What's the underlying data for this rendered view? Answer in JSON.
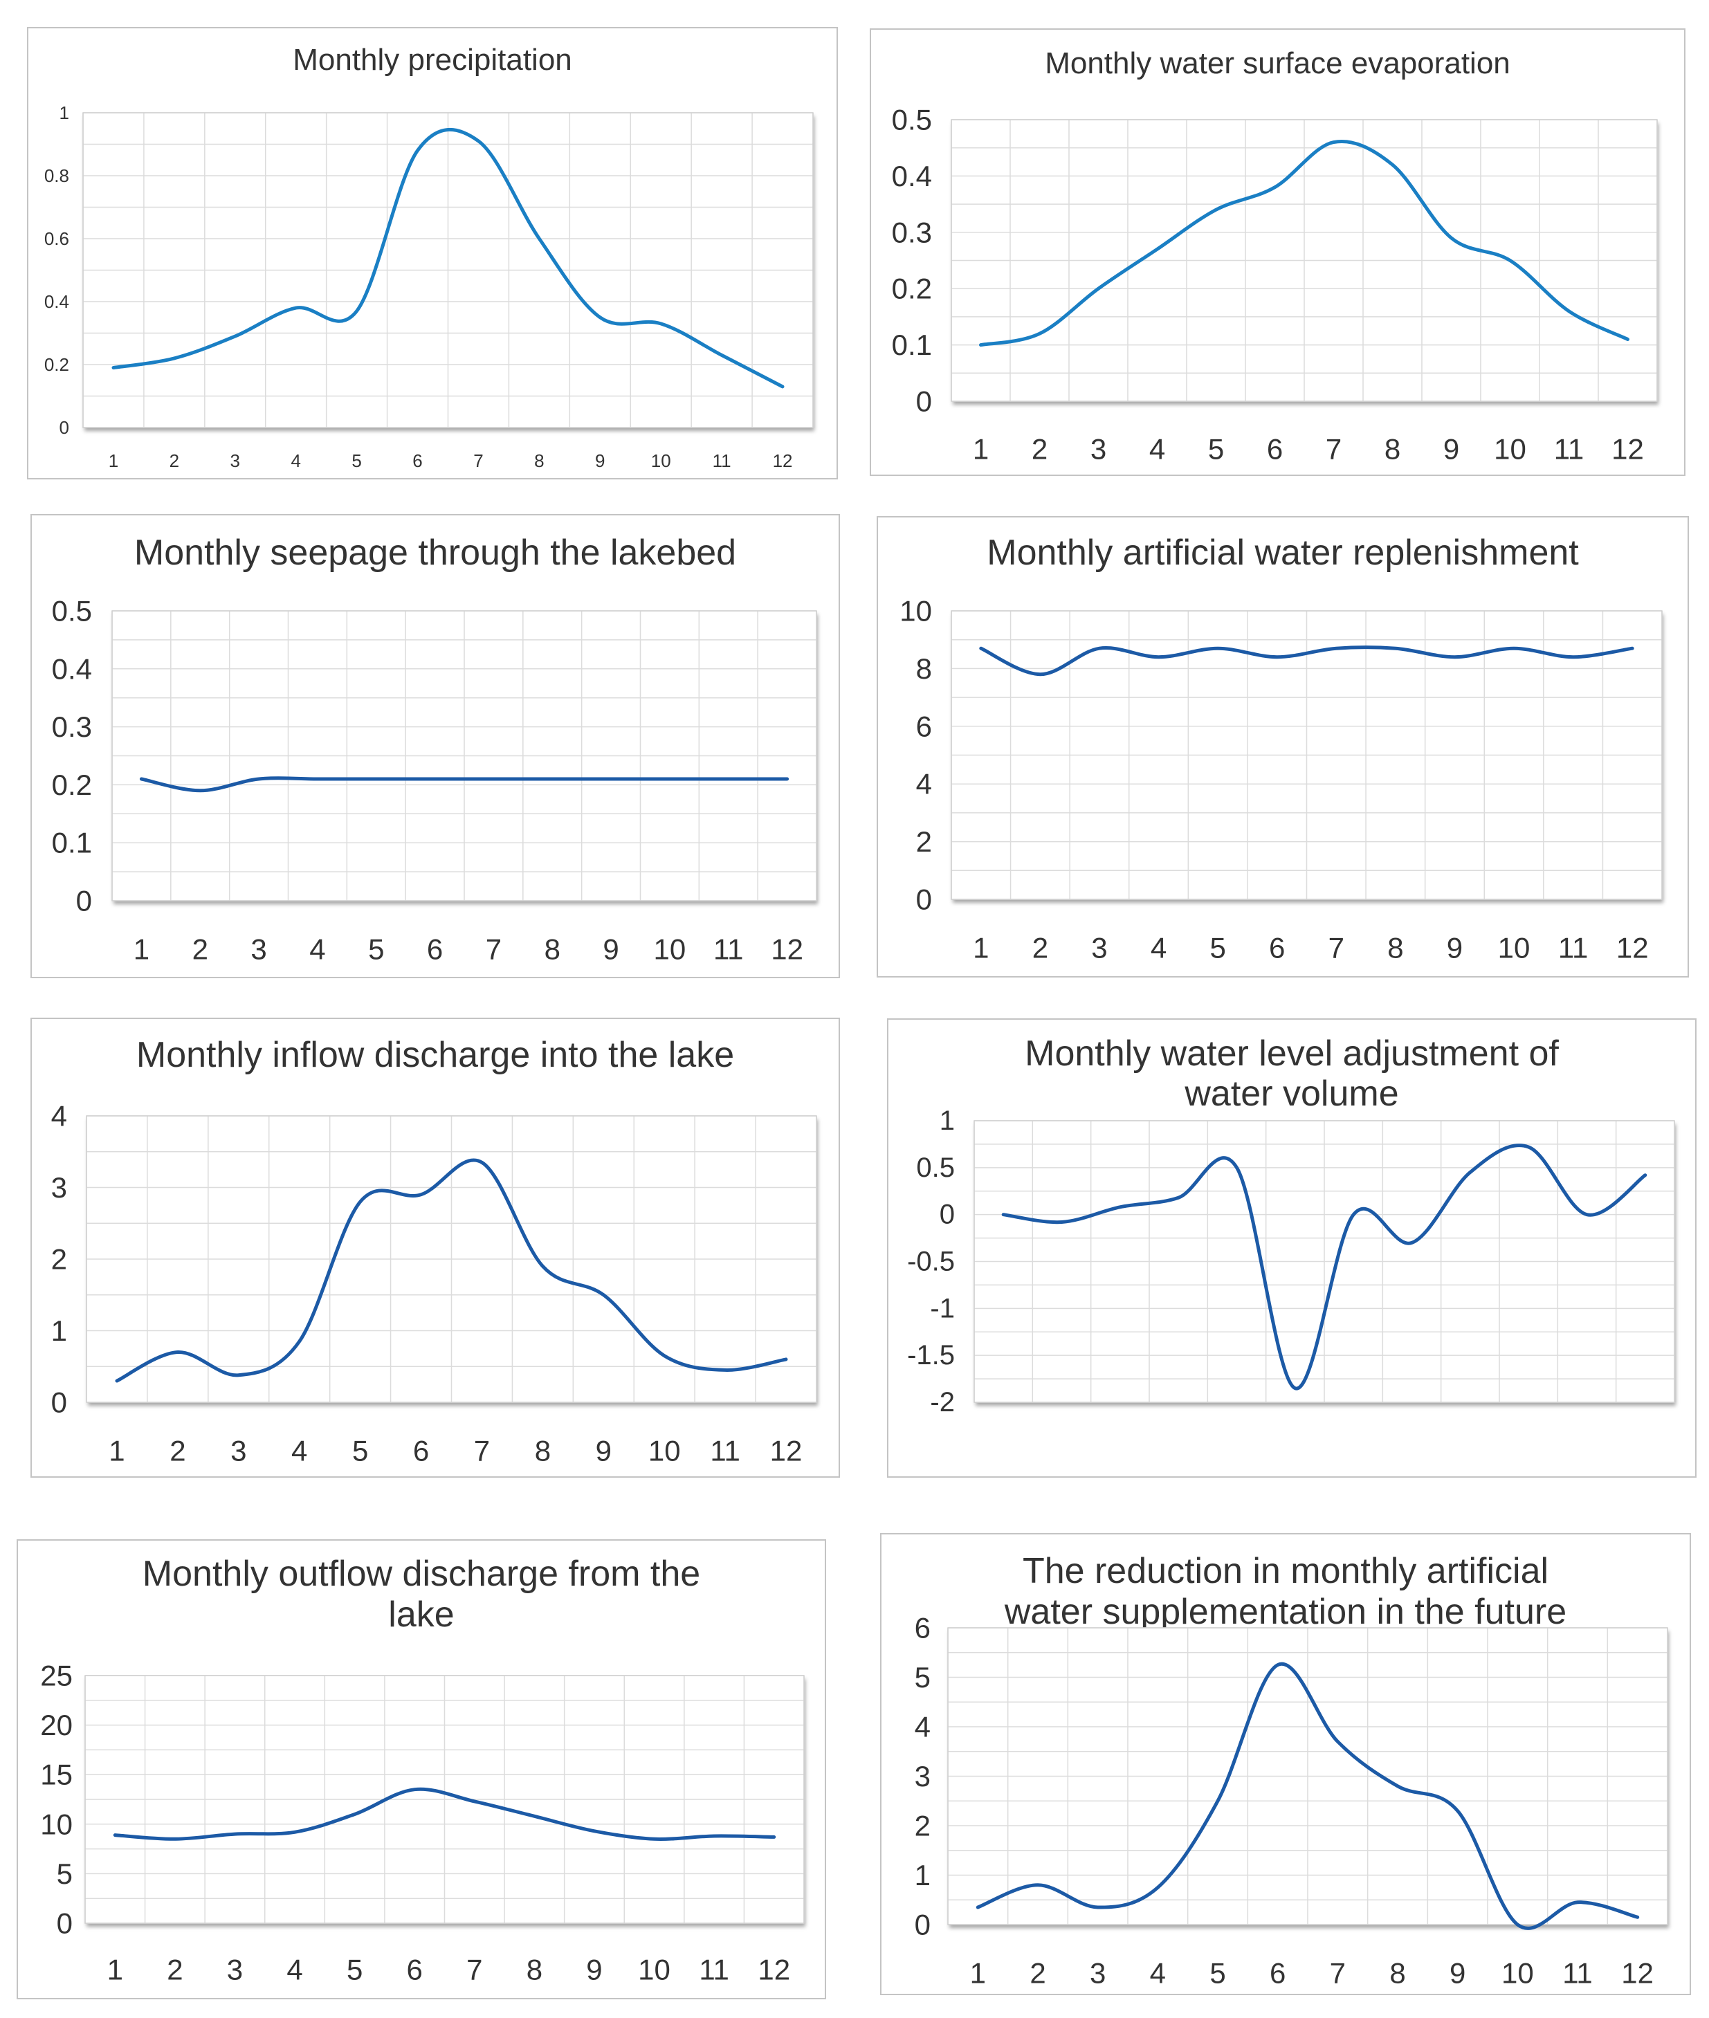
{
  "chart_data": [
    {
      "type": "line",
      "title_lines": [
        "Monthly precipitation"
      ],
      "x": [
        1,
        2,
        3,
        4,
        5,
        6,
        7,
        8,
        9,
        10,
        11,
        12
      ],
      "x_tick_labels": [
        "1",
        "2",
        "3",
        "4",
        "5",
        "6",
        "7",
        "8",
        "9",
        "10",
        "11",
        "12"
      ],
      "values": [
        0.19,
        0.22,
        0.29,
        0.38,
        0.37,
        0.88,
        0.91,
        0.6,
        0.35,
        0.33,
        0.23,
        0.13
      ],
      "ylim": [
        0,
        1
      ],
      "y_ticks": [
        0,
        0.2,
        0.4,
        0.6,
        0.8,
        1
      ],
      "y_tick_labels": [
        "0",
        "0.2",
        "0.4",
        "0.6",
        "0.8",
        "1"
      ],
      "line_color": "#1a7fc4",
      "grid": true,
      "xlabel": "",
      "ylabel": ""
    },
    {
      "type": "line",
      "title_lines": [
        "Monthly water surface evaporation"
      ],
      "x": [
        1,
        2,
        3,
        4,
        5,
        6,
        7,
        8,
        9,
        10,
        11,
        12
      ],
      "x_tick_labels": [
        "1",
        "2",
        "3",
        "4",
        "5",
        "6",
        "7",
        "8",
        "9",
        "10",
        "11",
        "12"
      ],
      "values": [
        0.1,
        0.12,
        0.2,
        0.27,
        0.34,
        0.38,
        0.46,
        0.42,
        0.29,
        0.25,
        0.16,
        0.11
      ],
      "ylim": [
        0,
        0.5
      ],
      "y_ticks": [
        0,
        0.1,
        0.2,
        0.3,
        0.4,
        0.5
      ],
      "y_tick_labels": [
        "0",
        "0.1",
        "0.2",
        "0.3",
        "0.4",
        "0.5"
      ],
      "line_color": "#1a7fc4",
      "grid": true,
      "xlabel": "",
      "ylabel": ""
    },
    {
      "type": "line",
      "title_lines": [
        "Monthly seepage through the lakebed"
      ],
      "x": [
        1,
        2,
        3,
        4,
        5,
        6,
        7,
        8,
        9,
        10,
        11,
        12
      ],
      "x_tick_labels": [
        "1",
        "2",
        "3",
        "4",
        "5",
        "6",
        "7",
        "8",
        "9",
        "10",
        "11",
        "12"
      ],
      "values": [
        0.21,
        0.19,
        0.21,
        0.21,
        0.21,
        0.21,
        0.21,
        0.21,
        0.21,
        0.21,
        0.21,
        0.21
      ],
      "ylim": [
        0,
        0.5
      ],
      "y_ticks": [
        0,
        0.1,
        0.2,
        0.3,
        0.4,
        0.5
      ],
      "y_tick_labels": [
        "0",
        "0.1",
        "0.2",
        "0.3",
        "0.4",
        "0.5"
      ],
      "line_color": "#1c5aa6",
      "grid": true,
      "xlabel": "",
      "ylabel": ""
    },
    {
      "type": "line",
      "title_lines": [
        "Monthly artificial water replenishment"
      ],
      "x": [
        1,
        2,
        3,
        4,
        5,
        6,
        7,
        8,
        9,
        10,
        11,
        12
      ],
      "x_tick_labels": [
        "1",
        "2",
        "3",
        "4",
        "5",
        "6",
        "7",
        "8",
        "9",
        "10",
        "11",
        "12"
      ],
      "values": [
        8.7,
        7.8,
        8.7,
        8.4,
        8.7,
        8.4,
        8.7,
        8.7,
        8.4,
        8.7,
        8.4,
        8.7
      ],
      "ylim": [
        0,
        10
      ],
      "y_ticks": [
        0,
        2,
        4,
        6,
        8,
        10
      ],
      "y_tick_labels": [
        "0",
        "2",
        "4",
        "6",
        "8",
        "10"
      ],
      "line_color": "#1c5aa6",
      "grid": true,
      "xlabel": "",
      "ylabel": ""
    },
    {
      "type": "line",
      "title_lines": [
        "Monthly inflow discharge into the lake"
      ],
      "x": [
        1,
        2,
        3,
        4,
        5,
        6,
        7,
        8,
        9,
        10,
        11,
        12
      ],
      "x_tick_labels": [
        "1",
        "2",
        "3",
        "4",
        "5",
        "6",
        "7",
        "8",
        "9",
        "10",
        "11",
        "12"
      ],
      "values": [
        0.3,
        0.7,
        0.38,
        0.85,
        2.8,
        2.9,
        3.35,
        1.9,
        1.5,
        0.65,
        0.45,
        0.6
      ],
      "ylim": [
        0,
        4
      ],
      "y_ticks": [
        0,
        1,
        2,
        3,
        4
      ],
      "y_tick_labels": [
        "0",
        "1",
        "2",
        "3",
        "4"
      ],
      "line_color": "#1c5aa6",
      "grid": true,
      "xlabel": "",
      "ylabel": ""
    },
    {
      "type": "line",
      "title_lines": [
        "Monthly water level adjustment of",
        "water volume"
      ],
      "x": [
        1,
        2,
        3,
        4,
        5,
        6,
        7,
        8,
        9,
        10,
        11,
        12
      ],
      "x_tick_labels": [],
      "values": [
        0,
        -0.08,
        0.08,
        0.18,
        0.5,
        -1.85,
        0,
        -0.3,
        0.45,
        0.72,
        0,
        0.42
      ],
      "ylim": [
        -2,
        1
      ],
      "y_ticks": [
        -2,
        -1.5,
        -1,
        -0.5,
        0,
        0.5,
        1
      ],
      "y_tick_labels": [
        "-2",
        "-1.5",
        "-1",
        "-0.5",
        "0",
        "0.5",
        "1"
      ],
      "line_color": "#1c5aa6",
      "grid": true,
      "xlabel": "",
      "ylabel": ""
    },
    {
      "type": "line",
      "title_lines": [
        "Monthly outflow discharge from the",
        "lake"
      ],
      "x": [
        1,
        2,
        3,
        4,
        5,
        6,
        7,
        8,
        9,
        10,
        11,
        12
      ],
      "x_tick_labels": [
        "1",
        "2",
        "3",
        "4",
        "5",
        "6",
        "7",
        "8",
        "9",
        "10",
        "11",
        "12"
      ],
      "values": [
        8.9,
        8.5,
        9.0,
        9.2,
        11.0,
        13.5,
        12.3,
        10.8,
        9.3,
        8.5,
        8.8,
        8.7
      ],
      "ylim": [
        0,
        25
      ],
      "y_ticks": [
        0,
        5,
        10,
        15,
        20,
        25
      ],
      "y_tick_labels": [
        "0",
        "5",
        "10",
        "15",
        "20",
        "25"
      ],
      "line_color": "#1c5aa6",
      "grid": true,
      "xlabel": "",
      "ylabel": ""
    },
    {
      "type": "line",
      "title_lines": [
        "The reduction in monthly artificial",
        "water supplementation in the future"
      ],
      "x": [
        1,
        2,
        3,
        4,
        5,
        6,
        7,
        8,
        9,
        10,
        11,
        12
      ],
      "x_tick_labels": [
        "1",
        "2",
        "3",
        "4",
        "5",
        "6",
        "7",
        "8",
        "9",
        "10",
        "11",
        "12"
      ],
      "values": [
        0.35,
        0.8,
        0.35,
        0.75,
        2.5,
        5.25,
        3.7,
        2.8,
        2.3,
        0.0,
        0.45,
        0.15
      ],
      "ylim": [
        0,
        6
      ],
      "y_ticks": [
        0,
        1,
        2,
        3,
        4,
        5,
        6
      ],
      "y_tick_labels": [
        "0",
        "1",
        "2",
        "3",
        "4",
        "5",
        "6"
      ],
      "line_color": "#1c5aa6",
      "grid": true,
      "xlabel": "",
      "ylabel": ""
    }
  ]
}
